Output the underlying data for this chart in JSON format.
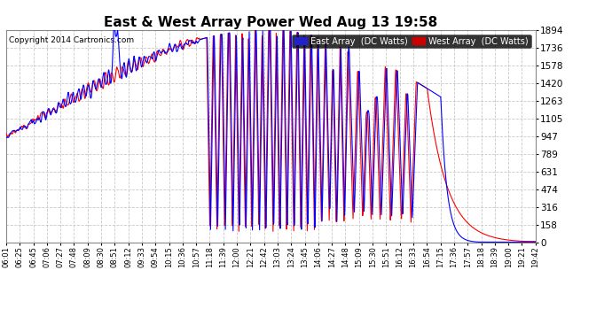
{
  "title": "East & West Array Power Wed Aug 13 19:58",
  "copyright": "Copyright 2014 Cartronics.com",
  "legend_east": "East Array  (DC Watts)",
  "legend_west": "West Array  (DC Watts)",
  "east_color": "#0000ff",
  "west_color": "#ff0000",
  "bg_color": "#ffffff",
  "grid_color": "#c8c8c8",
  "yticks": [
    0.0,
    157.8,
    315.7,
    473.5,
    631.3,
    789.2,
    947.0,
    1104.8,
    1262.7,
    1420.5,
    1578.3,
    1736.2,
    1894.0
  ],
  "ymax": 1894.0,
  "ymin": 0.0,
  "xtick_labels": [
    "06:01",
    "06:25",
    "06:45",
    "07:06",
    "07:27",
    "07:48",
    "08:09",
    "08:30",
    "08:51",
    "09:12",
    "09:33",
    "09:54",
    "10:15",
    "10:36",
    "10:57",
    "11:18",
    "11:39",
    "12:00",
    "12:21",
    "12:42",
    "13:03",
    "13:24",
    "13:45",
    "14:06",
    "14:27",
    "14:48",
    "15:09",
    "15:30",
    "15:51",
    "16:12",
    "16:33",
    "16:54",
    "17:15",
    "17:36",
    "17:57",
    "18:18",
    "18:39",
    "19:00",
    "19:21",
    "19:42"
  ]
}
